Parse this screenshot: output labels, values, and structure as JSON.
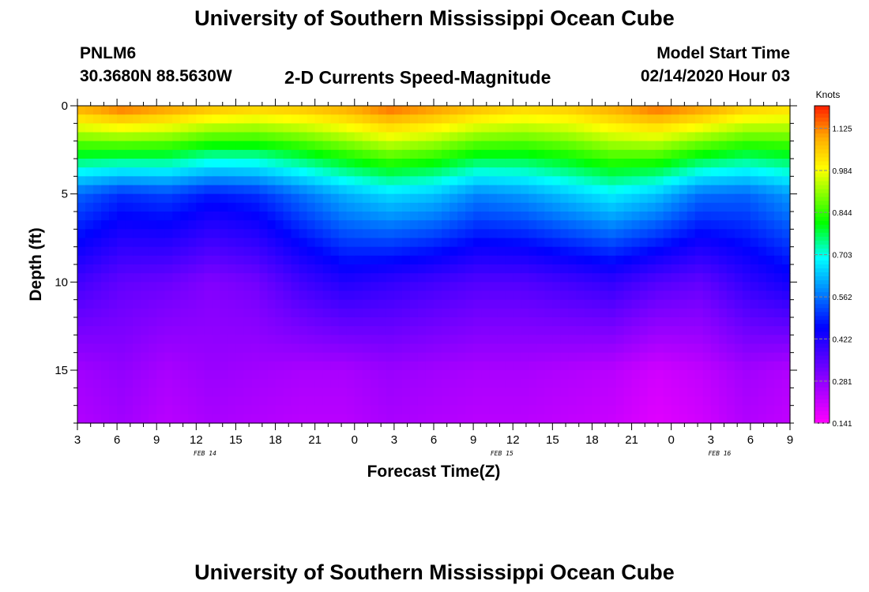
{
  "header": {
    "title_top": "University of Southern Mississippi Ocean Cube",
    "station_id": "PNLM6",
    "coordinates": "30.3680N 88.5630W",
    "plot_title": "2-D Currents Speed-Magnitude",
    "model_start_label": "Model Start Time",
    "model_start_value": "02/14/2020 Hour 03",
    "title_bottom": "University of Southern Mississippi Ocean Cube"
  },
  "chart_data": {
    "type": "heatmap",
    "title": "2-D Currents Speed-Magnitude",
    "xlabel": "Forecast Time(Z)",
    "ylabel": "Depth (ft)",
    "x_tick_labels": [
      "3",
      "6",
      "9",
      "12",
      "15",
      "18",
      "21",
      "0",
      "3",
      "6",
      "9",
      "12",
      "15",
      "18",
      "21",
      "0",
      "3",
      "6",
      "9"
    ],
    "x_range_hours": [
      0,
      54
    ],
    "date_labels": [
      {
        "label": "FEB 14",
        "hour": 10
      },
      {
        "label": "FEB 15",
        "hour": 32.5
      },
      {
        "label": "FEB 16",
        "hour": 49
      }
    ],
    "y_ticks": [
      0,
      5,
      10,
      15
    ],
    "y_tick_labels": [
      "0",
      "5",
      "10",
      "15"
    ],
    "y_range_ft": [
      0,
      18
    ],
    "colorbar": {
      "unit": "Knots",
      "ticks": [
        1.125,
        0.984,
        0.844,
        0.703,
        0.562,
        0.422,
        0.281,
        0.141
      ],
      "tick_labels": [
        "1.125",
        "0.984",
        "0.844",
        "0.703",
        "0.562",
        "0.422",
        "0.281",
        "0.141"
      ],
      "min": 0.141,
      "max": 1.2
    },
    "series": [
      {
        "name": "speed at 0 ft (knots)",
        "values": [
          1.1,
          1.15,
          1.12,
          1.08,
          1.06,
          1.07,
          1.1,
          1.15,
          1.12,
          1.08,
          1.05,
          1.06,
          1.1,
          1.15,
          1.12,
          1.06,
          1.04
        ]
      },
      {
        "name": "speed at 5 ft (knots)",
        "values": [
          0.55,
          0.5,
          0.52,
          0.48,
          0.5,
          0.56,
          0.62,
          0.66,
          0.64,
          0.58,
          0.6,
          0.64,
          0.68,
          0.64,
          0.56,
          0.55,
          0.6
        ]
      },
      {
        "name": "speed at 10 ft (knots)",
        "values": [
          0.38,
          0.34,
          0.33,
          0.3,
          0.32,
          0.38,
          0.42,
          0.4,
          0.38,
          0.36,
          0.36,
          0.38,
          0.4,
          0.36,
          0.34,
          0.4,
          0.44
        ]
      },
      {
        "name": "speed at 15 ft (knots)",
        "values": [
          0.26,
          0.28,
          0.25,
          0.27,
          0.26,
          0.25,
          0.25,
          0.27,
          0.26,
          0.25,
          0.25,
          0.24,
          0.23,
          0.2,
          0.22,
          0.26,
          0.24
        ]
      }
    ]
  }
}
